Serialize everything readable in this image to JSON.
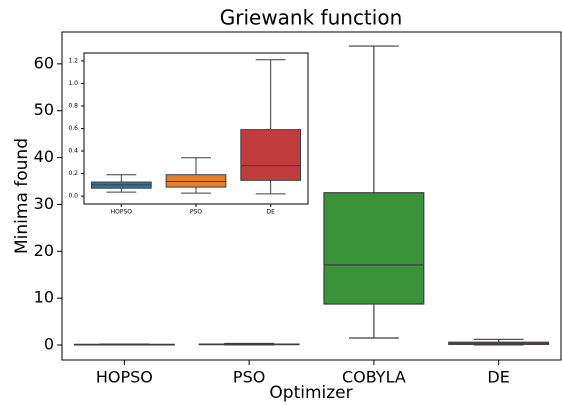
{
  "chart_data": [
    {
      "type": "box",
      "title": "Griewank function",
      "xlabel": "Optimizer",
      "ylabel": "Minima found",
      "categories": [
        "HOPSO",
        "PSO",
        "COBYLA",
        "DE"
      ],
      "colors": [
        "#3274a1",
        "#e1812c",
        "#3a923a",
        "#c03d3e"
      ],
      "boxes": [
        {
          "whislo": 0.035,
          "q1": 0.07,
          "med": 0.1,
          "q3": 0.125,
          "whishi": 0.19
        },
        {
          "whislo": 0.027,
          "q1": 0.08,
          "med": 0.13,
          "q3": 0.19,
          "whishi": 0.34
        },
        {
          "whislo": 1.5,
          "q1": 8.75,
          "med": 17.1,
          "q3": 32.5,
          "whishi": 63.8
        },
        {
          "whislo": 0.02,
          "q1": 0.14,
          "med": 0.27,
          "q3": 0.59,
          "whishi": 1.21
        }
      ],
      "ylim": [
        -3.2,
        66.8
      ],
      "yticks": [
        0,
        10,
        20,
        30,
        40,
        50,
        60
      ]
    },
    {
      "type": "box",
      "categories": [
        "HOPSO",
        "PSO",
        "DE"
      ],
      "colors": [
        "#3274a1",
        "#e1812c",
        "#c03d3e"
      ],
      "boxes": [
        {
          "whislo": 0.035,
          "q1": 0.07,
          "med": 0.1,
          "q3": 0.125,
          "whishi": 0.19
        },
        {
          "whislo": 0.027,
          "q1": 0.08,
          "med": 0.13,
          "q3": 0.19,
          "whishi": 0.34
        },
        {
          "whislo": 0.02,
          "q1": 0.14,
          "med": 0.27,
          "q3": 0.59,
          "whishi": 1.21
        }
      ],
      "ylim": [
        -0.07,
        1.27
      ],
      "yticks": [
        {
          "value": 0,
          "label": "0.0"
        },
        0.2,
        0.4,
        0.6,
        0.8,
        {
          "value": 1,
          "label": "1.0"
        },
        1.2
      ]
    }
  ]
}
